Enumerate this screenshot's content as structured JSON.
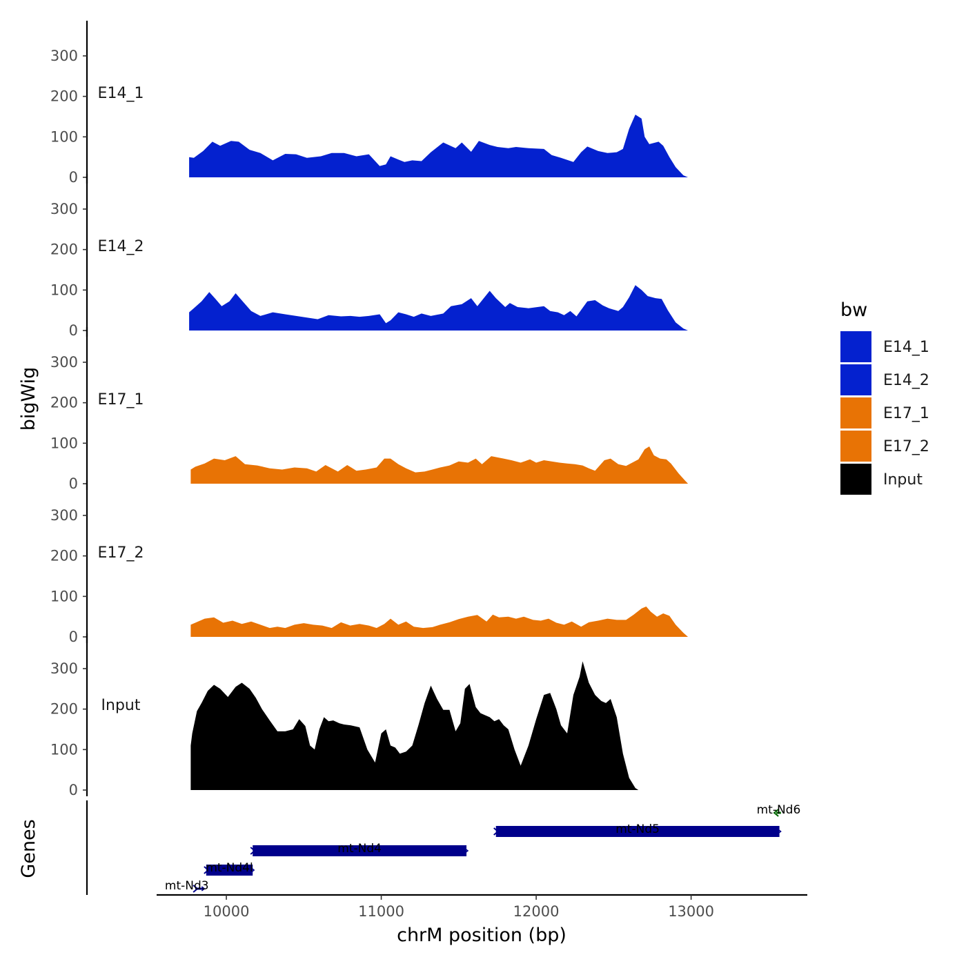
{
  "colors": {
    "E14": "#0421CF",
    "E17": "#E87305",
    "Input": "#000000",
    "gene_plus": "#00008B",
    "gene_minus": "#006400"
  },
  "chart_data": {
    "type": "area",
    "subtype": "genome-browser coverage tracks",
    "chromosome": "chrM",
    "xlabel": "chrM position (bp)",
    "ylabel_tracks": "bigWig",
    "ylabel_genes": "Genes",
    "xlim": [
      9550,
      13750
    ],
    "x_ticks": [
      10000,
      11000,
      12000,
      13000
    ],
    "x_tick_labels": [
      "10000",
      "11000",
      "12000",
      "13000"
    ],
    "ylim": [
      0,
      330
    ],
    "y_ticks": [
      0,
      100,
      200,
      300
    ],
    "y_tick_labels": [
      "0",
      "100",
      "200",
      "300"
    ],
    "legend": {
      "title": "bw",
      "entries": [
        {
          "label": "E14_1",
          "color": "#0421CF"
        },
        {
          "label": "E14_2",
          "color": "#0421CF"
        },
        {
          "label": "E17_1",
          "color": "#E87305"
        },
        {
          "label": "E17_2",
          "color": "#E87305"
        },
        {
          "label": "Input",
          "color": "#000000"
        }
      ]
    },
    "tracks": [
      {
        "name": "E14_1",
        "color": "#0421CF",
        "x": [
          9760,
          9790,
          9850,
          9910,
          9960,
          10030,
          10080,
          10150,
          10220,
          10300,
          10380,
          10450,
          10520,
          10610,
          10680,
          10760,
          10840,
          10920,
          10990,
          11030,
          11060,
          11110,
          11150,
          11200,
          11260,
          11320,
          11400,
          11480,
          11520,
          11580,
          11630,
          11700,
          11750,
          11820,
          11870,
          11950,
          12050,
          12100,
          12160,
          12240,
          12290,
          12330,
          12400,
          12460,
          12520,
          12560,
          12600,
          12640,
          12680,
          12700,
          12730,
          12790,
          12820,
          12860,
          12900,
          12950,
          12980
        ],
        "y": [
          50,
          48,
          65,
          88,
          78,
          90,
          88,
          68,
          60,
          42,
          58,
          57,
          48,
          52,
          60,
          60,
          52,
          57,
          28,
          32,
          52,
          44,
          38,
          42,
          40,
          62,
          86,
          72,
          86,
          63,
          90,
          80,
          75,
          72,
          75,
          72,
          70,
          55,
          48,
          38,
          62,
          76,
          65,
          60,
          62,
          70,
          120,
          155,
          145,
          100,
          82,
          88,
          78,
          50,
          25,
          5,
          0
        ]
      },
      {
        "name": "E14_2",
        "color": "#0421CF",
        "x": [
          9760,
          9790,
          9840,
          9890,
          9930,
          9970,
          10020,
          10060,
          10110,
          10160,
          10220,
          10300,
          10380,
          10450,
          10520,
          10590,
          10660,
          10740,
          10800,
          10860,
          10920,
          10990,
          11030,
          11060,
          11110,
          11160,
          11210,
          11260,
          11320,
          11400,
          11450,
          11520,
          11580,
          11620,
          11700,
          11740,
          11800,
          11830,
          11880,
          11950,
          12050,
          12090,
          12140,
          12180,
          12220,
          12260,
          12330,
          12380,
          12430,
          12470,
          12530,
          12560,
          12600,
          12640,
          12680,
          12720,
          12770,
          12810,
          12850,
          12900,
          12950,
          12980
        ],
        "y": [
          45,
          55,
          72,
          95,
          78,
          60,
          72,
          92,
          70,
          48,
          36,
          45,
          40,
          36,
          32,
          28,
          38,
          35,
          36,
          34,
          36,
          40,
          18,
          25,
          45,
          40,
          34,
          42,
          36,
          42,
          60,
          65,
          80,
          60,
          98,
          80,
          58,
          68,
          58,
          55,
          60,
          48,
          45,
          38,
          48,
          35,
          72,
          75,
          62,
          55,
          48,
          58,
          82,
          112,
          100,
          85,
          80,
          78,
          50,
          20,
          5,
          0
        ]
      },
      {
        "name": "E17_1",
        "color": "#E87305",
        "x": [
          9770,
          9800,
          9860,
          9920,
          9990,
          10060,
          10120,
          10200,
          10280,
          10360,
          10440,
          10520,
          10580,
          10640,
          10720,
          10780,
          10840,
          10900,
          10970,
          11020,
          11060,
          11110,
          11160,
          11220,
          11280,
          11330,
          11380,
          11440,
          11500,
          11560,
          11610,
          11650,
          11710,
          11790,
          11840,
          11900,
          11960,
          12000,
          12050,
          12100,
          12150,
          12200,
          12250,
          12300,
          12340,
          12380,
          12440,
          12480,
          12530,
          12580,
          12620,
          12660,
          12700,
          12730,
          12760,
          12800,
          12840,
          12870,
          12920,
          12960,
          12980
        ],
        "y": [
          35,
          42,
          50,
          62,
          58,
          68,
          48,
          45,
          38,
          35,
          40,
          38,
          30,
          46,
          30,
          46,
          32,
          35,
          40,
          62,
          62,
          48,
          38,
          28,
          30,
          35,
          40,
          45,
          55,
          52,
          62,
          48,
          68,
          62,
          58,
          52,
          60,
          52,
          58,
          55,
          52,
          50,
          48,
          45,
          38,
          32,
          58,
          62,
          48,
          44,
          52,
          60,
          85,
          92,
          70,
          62,
          60,
          50,
          25,
          8,
          0
        ]
      },
      {
        "name": "E17_2",
        "color": "#E87305",
        "x": [
          9770,
          9800,
          9860,
          9920,
          9980,
          10040,
          10100,
          10160,
          10220,
          10280,
          10330,
          10380,
          10440,
          10500,
          10560,
          10620,
          10680,
          10740,
          10800,
          10860,
          10920,
          10970,
          11020,
          11060,
          11110,
          11160,
          11210,
          11270,
          11330,
          11380,
          11440,
          11500,
          11560,
          11620,
          11680,
          11720,
          11760,
          11820,
          11870,
          11920,
          11980,
          12030,
          12080,
          12130,
          12180,
          12230,
          12290,
          12340,
          12400,
          12460,
          12520,
          12580,
          12630,
          12680,
          12710,
          12740,
          12780,
          12820,
          12860,
          12900,
          12950,
          12980
        ],
        "y": [
          30,
          35,
          45,
          48,
          35,
          40,
          32,
          38,
          30,
          22,
          25,
          22,
          30,
          34,
          30,
          28,
          22,
          36,
          28,
          32,
          28,
          22,
          32,
          45,
          30,
          38,
          25,
          22,
          24,
          30,
          36,
          44,
          50,
          54,
          38,
          55,
          48,
          50,
          45,
          50,
          42,
          40,
          45,
          35,
          30,
          38,
          25,
          36,
          40,
          45,
          42,
          42,
          55,
          70,
          75,
          62,
          50,
          58,
          52,
          30,
          10,
          0
        ]
      },
      {
        "name": "Input",
        "color": "#000000",
        "x": [
          9770,
          9780,
          9810,
          9840,
          9880,
          9920,
          9960,
          10010,
          10060,
          10100,
          10150,
          10190,
          10230,
          10280,
          10330,
          10380,
          10430,
          10470,
          10510,
          10540,
          10570,
          10600,
          10630,
          10660,
          10690,
          10730,
          10760,
          10800,
          10860,
          10910,
          10960,
          11000,
          11030,
          11060,
          11090,
          11120,
          11160,
          11200,
          11240,
          11280,
          11320,
          11360,
          11400,
          11440,
          11480,
          11510,
          11540,
          11570,
          11610,
          11640,
          11670,
          11700,
          11730,
          11760,
          11790,
          11820,
          11860,
          11900,
          11950,
          12000,
          12050,
          12090,
          12130,
          12160,
          12200,
          12240,
          12280,
          12300,
          12340,
          12380,
          12420,
          12450,
          12480,
          12520,
          12560,
          12600,
          12640,
          12660,
          12680,
          12700,
          12720,
          12750,
          12790,
          12830,
          12860,
          12900,
          12930,
          12960,
          12980
        ],
        "y": [
          110,
          140,
          195,
          215,
          245,
          260,
          250,
          230,
          255,
          265,
          250,
          228,
          200,
          172,
          145,
          145,
          150,
          175,
          158,
          110,
          100,
          150,
          180,
          170,
          172,
          165,
          162,
          160,
          155,
          100,
          68,
          140,
          150,
          110,
          105,
          90,
          95,
          110,
          160,
          215,
          258,
          225,
          198,
          198,
          145,
          165,
          250,
          262,
          205,
          190,
          185,
          180,
          170,
          175,
          160,
          150,
          100,
          60,
          110,
          175,
          235,
          240,
          200,
          160,
          140,
          235,
          280,
          318,
          265,
          235,
          220,
          215,
          225,
          180,
          90,
          30,
          5,
          0,
          0,
          0,
          0,
          0,
          0,
          0,
          0,
          0,
          0,
          0,
          0
        ]
      }
    ],
    "genes": [
      {
        "name": "mt-Nd3",
        "start": 9800,
        "end": 9850,
        "strand": "+",
        "row": 0
      },
      {
        "name": "mt-Nd4l",
        "start": 9870,
        "end": 10170,
        "strand": "+",
        "row": 1
      },
      {
        "name": "mt-Nd4",
        "start": 10170,
        "end": 11550,
        "strand": "+",
        "row": 2
      },
      {
        "name": "mt-Nd5",
        "start": 11740,
        "end": 13570,
        "strand": "+",
        "row": 3
      },
      {
        "name": "mt-Nd6",
        "start": 13550,
        "end": 13580,
        "strand": "-",
        "row": 4
      }
    ]
  }
}
